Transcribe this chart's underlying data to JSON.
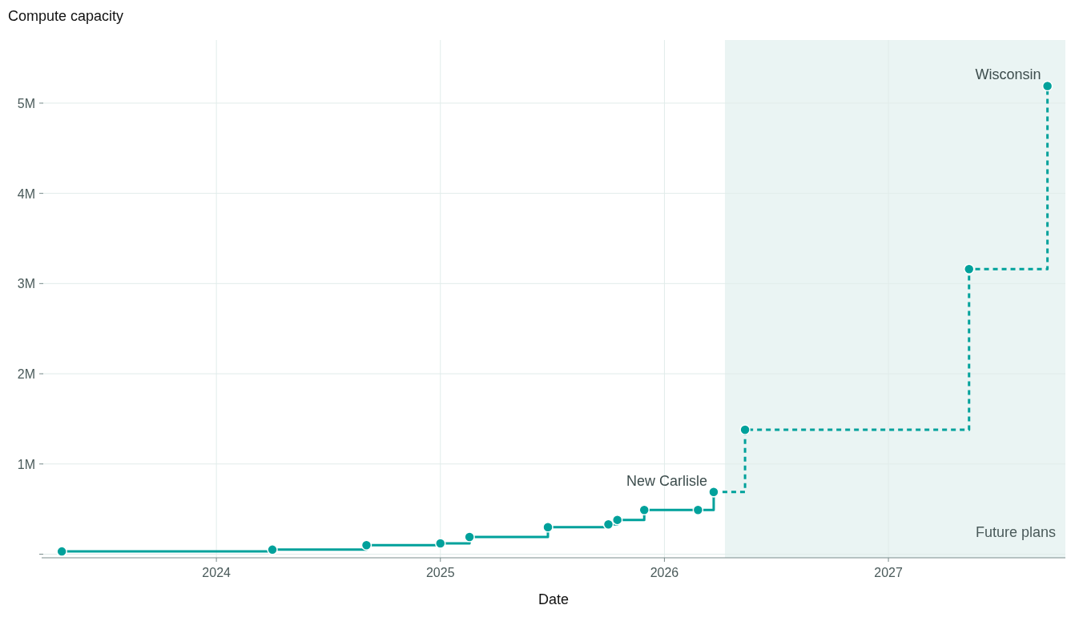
{
  "chart_data": {
    "type": "step",
    "ylabel": "Compute capacity",
    "xlabel": "Date",
    "series": [
      {
        "color": "#00a19b",
        "line_style": "solid",
        "x": [
          2023.31,
          2024.25,
          2024.67,
          2025.0,
          2025.13,
          2025.48,
          2025.75,
          2025.79,
          2025.91,
          2026.15,
          2026.22
        ],
        "values": [
          30000,
          50000,
          100000,
          120000,
          190000,
          300000,
          330000,
          380000,
          490000,
          490000,
          690000
        ]
      },
      {
        "color": "#00a19b",
        "line_style": "dashed",
        "x": [
          2026.22,
          2026.36,
          2027.36,
          2027.71
        ],
        "values": [
          690000,
          1380000,
          3160000,
          5190000
        ]
      }
    ],
    "xlim": [
      2023.22,
      2027.79
    ],
    "xticks": [
      2024,
      2025,
      2026,
      2027
    ],
    "ylim": [
      -40000,
      5700000
    ],
    "yticks": [
      {
        "value": 0,
        "label": null
      },
      {
        "value": 1000000,
        "label": "1M"
      },
      {
        "value": 2000000,
        "label": "2M"
      },
      {
        "value": 3000000,
        "label": "3M"
      },
      {
        "value": 4000000,
        "label": "4M"
      },
      {
        "value": 5000000,
        "label": "5M"
      }
    ],
    "grid": true,
    "marker": "circle",
    "bands": [
      {
        "axis": "x",
        "from": 2026.27,
        "to": 2027.79,
        "label": "Future plans",
        "color": "#eaf4f3"
      }
    ],
    "annotations": [
      {
        "text": "Wisconsin",
        "x": 2027.71,
        "y": 5190000
      },
      {
        "text": "New Carlisle",
        "x": 2026.22,
        "y": 690000
      }
    ]
  }
}
